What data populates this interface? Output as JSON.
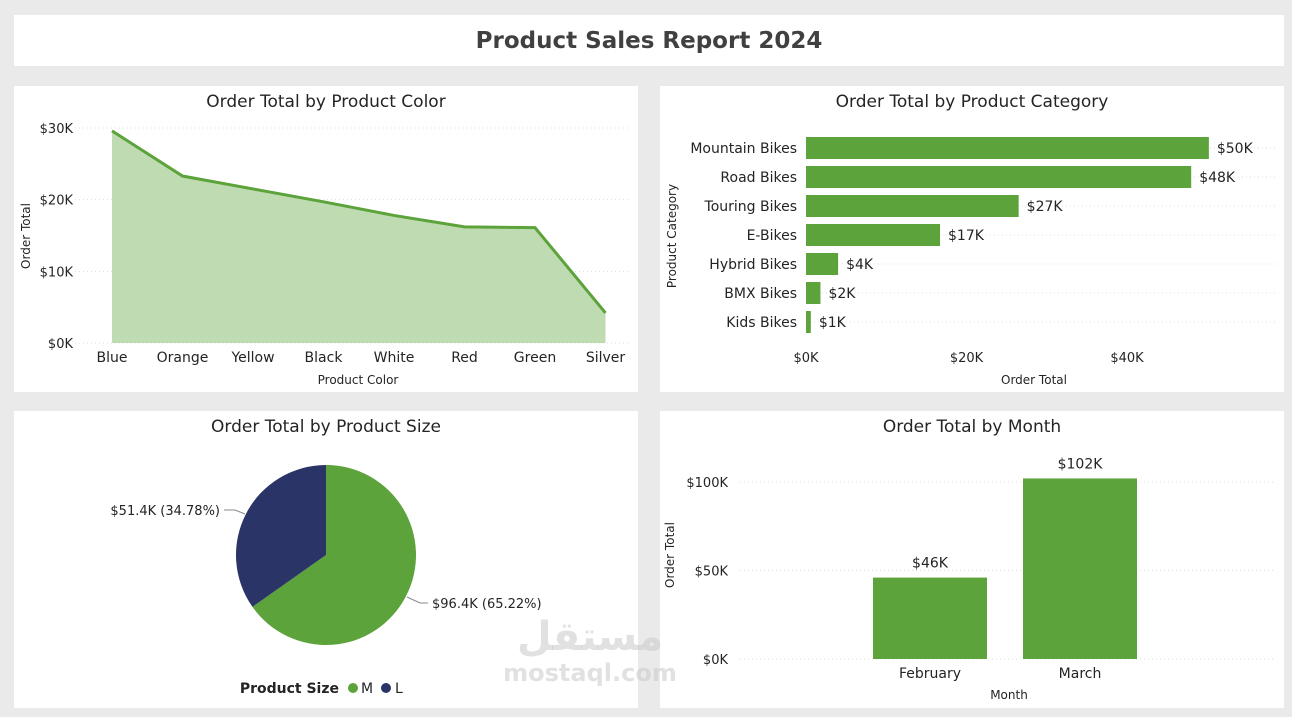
{
  "header": {
    "title": "Product Sales Report 2024"
  },
  "watermark": {
    "text": "mostaql.com",
    "arabic": "مستقل"
  },
  "colors": {
    "green": "#5ba33a",
    "area_fill": "#bfdbb1",
    "navy": "#2b3466"
  },
  "chart_data": [
    {
      "type": "area",
      "title": "Order Total by Product Color",
      "xlabel": "Product Color",
      "ylabel": "Order Total",
      "categories": [
        "Blue",
        "Orange",
        "Yellow",
        "Black",
        "White",
        "Red",
        "Green",
        "Silver"
      ],
      "values": [
        29600,
        23300,
        21500,
        19700,
        17800,
        16200,
        16100,
        4200
      ],
      "ylim": [
        0,
        30000
      ],
      "yticks": [
        "$0K",
        "$10K",
        "$20K",
        "$30K"
      ],
      "grid": true
    },
    {
      "type": "bar",
      "orientation": "horizontal",
      "title": "Order Total by Product Category",
      "xlabel": "Order Total",
      "ylabel": "Product Category",
      "categories": [
        "Mountain Bikes",
        "Road Bikes",
        "Touring Bikes",
        "E-Bikes",
        "Hybrid Bikes",
        "BMX Bikes",
        "Kids Bikes"
      ],
      "values": [
        50200,
        48000,
        26500,
        16700,
        4000,
        1800,
        600
      ],
      "labels": [
        "$50K",
        "$48K",
        "$27K",
        "$17K",
        "$4K",
        "$2K",
        "$1K"
      ],
      "xlim": [
        0,
        50000
      ],
      "xticks": [
        "$0K",
        "$20K",
        "$40K"
      ]
    },
    {
      "type": "pie",
      "title": "Order Total by Product Size",
      "legend_title": "Product Size",
      "categories": [
        "M",
        "L"
      ],
      "values": [
        96400,
        51400
      ],
      "labels": [
        "$96.4K (65.22%)",
        "$51.4K (34.78%)"
      ],
      "legend": "bottom"
    },
    {
      "type": "bar",
      "title": "Order Total by Month",
      "xlabel": "Month",
      "ylabel": "Order Total",
      "categories": [
        "February",
        "March"
      ],
      "values": [
        46000,
        102000
      ],
      "labels": [
        "$46K",
        "$102K"
      ],
      "ylim": [
        0,
        100000
      ],
      "yticks": [
        "$0K",
        "$50K",
        "$100K"
      ]
    }
  ]
}
